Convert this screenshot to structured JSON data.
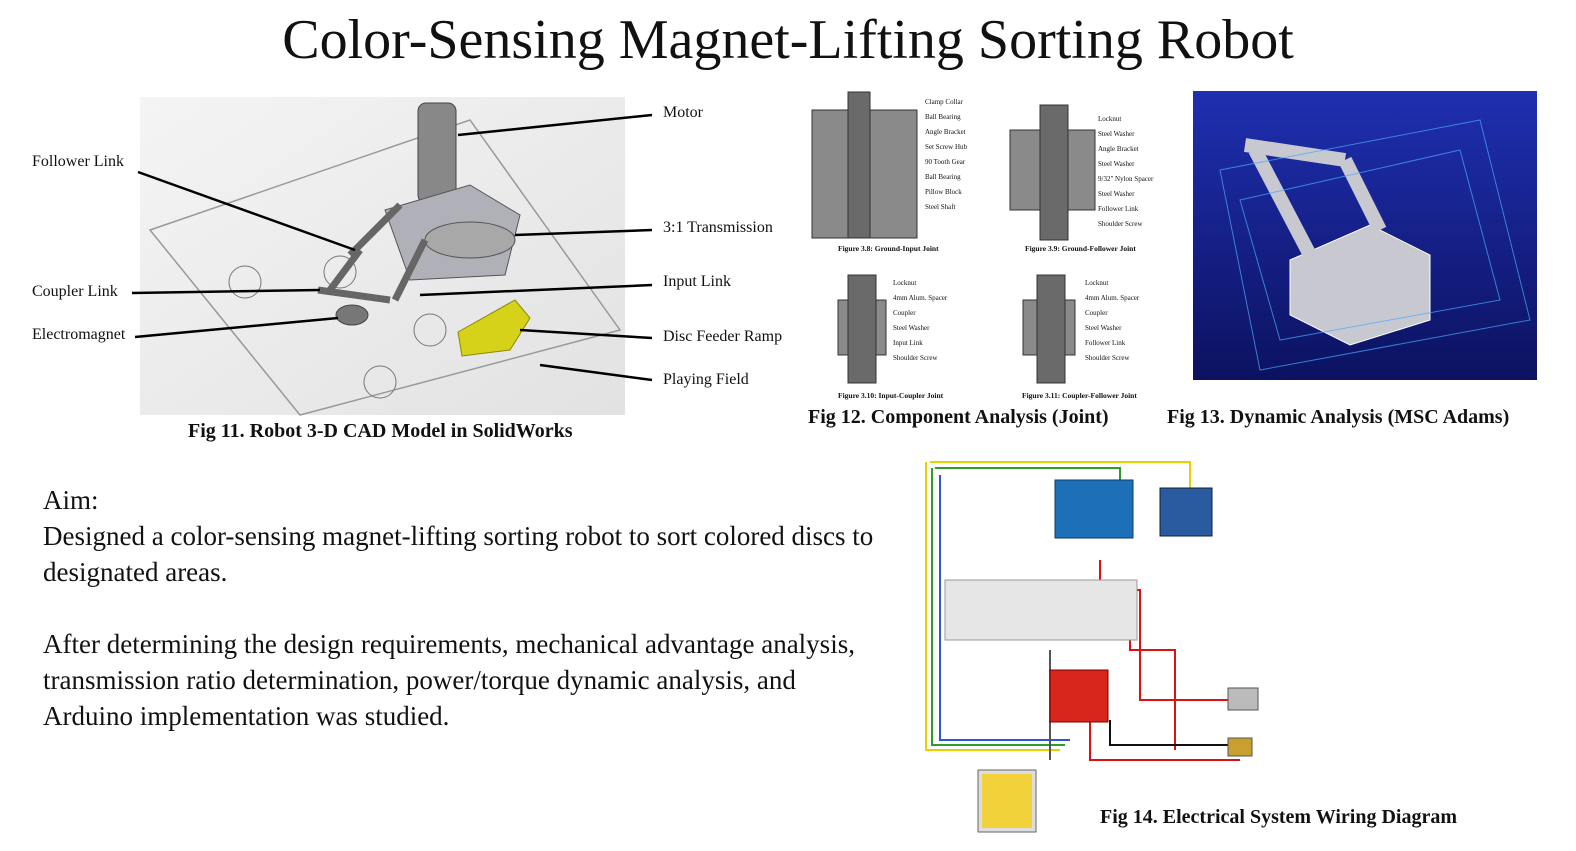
{
  "title": "Color-Sensing Magnet-Lifting Sorting Robot",
  "fig11": {
    "caption": "Fig 11. Robot 3-D CAD Model in SolidWorks",
    "labels": [
      "Motor",
      "Follower Link",
      "3:1 Transmission",
      "Coupler Link",
      "Input Link",
      "Electromagnet",
      "Disc Feeder Ramp",
      "Playing Field"
    ]
  },
  "fig12": {
    "caption": "Fig 12. Component Analysis (Joint)",
    "subfigures": [
      {
        "caption": "Figure 3.8: Ground-Input Joint",
        "labels": [
          "Clamp Collar",
          "Ball Bearing",
          "Angle Bracket",
          "Set Screw Hub",
          "90 Tooth Gear",
          "Ball Bearing",
          "Pillow Block",
          "Steel Shaft"
        ]
      },
      {
        "caption": "Figure 3.9: Ground-Follower Joint",
        "labels": [
          "Locknut",
          "Steel Washer",
          "Angle Bracket",
          "Steel Washer",
          "9/32\" Nylon Spacer",
          "Steel Washer",
          "Follower Link",
          "Shoulder Screw"
        ]
      },
      {
        "caption": "Figure 3.10: Input-Coupler Joint",
        "labels": [
          "Locknut",
          "4mm Alum. Spacer",
          "Coupler",
          "Steel Washer",
          "Input Link",
          "Shoulder Screw"
        ]
      },
      {
        "caption": "Figure 3.11: Coupler-Follower Joint",
        "labels": [
          "Locknut",
          "4mm Alum. Spacer",
          "Coupler",
          "Steel Washer",
          "Follower Link",
          "Shoulder Screw"
        ]
      }
    ]
  },
  "fig13": {
    "caption": "Fig 13. Dynamic Analysis (MSC Adams)"
  },
  "fig14": {
    "caption": "Fig 14. Electrical System Wiring Diagram"
  },
  "aim": {
    "heading": "Aim:",
    "paragraphs": [
      "Designed a color-sensing magnet-lifting sorting robot to sort colored discs to designated areas.",
      "After determining the design requirements, mechanical advantage analysis, transmission ratio determination, power/torque dynamic analysis, and Arduino implementation was studied."
    ]
  }
}
